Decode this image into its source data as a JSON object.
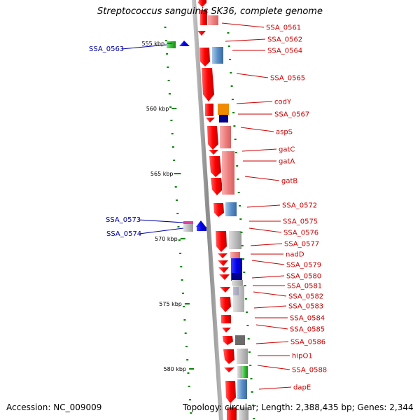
{
  "title": "Streptococcus sanguinis SK36, complete genome",
  "footer": {
    "accession": "Accession: NC_009009",
    "topology": "Topology: circular; Length: 2,388,435 bp; Genes: 2,344"
  },
  "colors": {
    "cds": "#ff0000",
    "cds_light": "#f08080",
    "gene_label": "#cc0000",
    "minus_label": "#0000aa",
    "backbone": "#999999",
    "tick": "#008800"
  },
  "scale_ticks": [
    {
      "label": "555 kbp",
      "kbp": 555
    },
    {
      "label": "560 kbp",
      "kbp": 560
    },
    {
      "label": "565 kbp",
      "kbp": 565
    },
    {
      "label": "570 kbp",
      "kbp": 570
    },
    {
      "label": "575 kbp",
      "kbp": 575
    },
    {
      "label": "580 kbp",
      "kbp": 580
    }
  ],
  "plus_genes": [
    {
      "label": "SSA_0561"
    },
    {
      "label": "SSA_0562"
    },
    {
      "label": "SSA_0564"
    },
    {
      "label": "SSA_0565"
    },
    {
      "label": "codY"
    },
    {
      "label": "SSA_0567"
    },
    {
      "label": "aspS"
    },
    {
      "label": "gatC"
    },
    {
      "label": "gatA"
    },
    {
      "label": "gatB"
    },
    {
      "label": "SSA_0572"
    },
    {
      "label": "SSA_0575"
    },
    {
      "label": "SSA_0576"
    },
    {
      "label": "SSA_0577"
    },
    {
      "label": "nadD"
    },
    {
      "label": "SSA_0579"
    },
    {
      "label": "SSA_0580"
    },
    {
      "label": "SSA_0581"
    },
    {
      "label": "SSA_0582"
    },
    {
      "label": "SSA_0583"
    },
    {
      "label": "SSA_0584"
    },
    {
      "label": "SSA_0585"
    },
    {
      "label": "SSA_0586"
    },
    {
      "label": "hipO1"
    },
    {
      "label": "SSA_0588"
    },
    {
      "label": "dapE"
    }
  ],
  "minus_genes": [
    {
      "label": "SSA_0563"
    },
    {
      "label": "SSA_0573"
    },
    {
      "label": "SSA_0574"
    }
  ]
}
